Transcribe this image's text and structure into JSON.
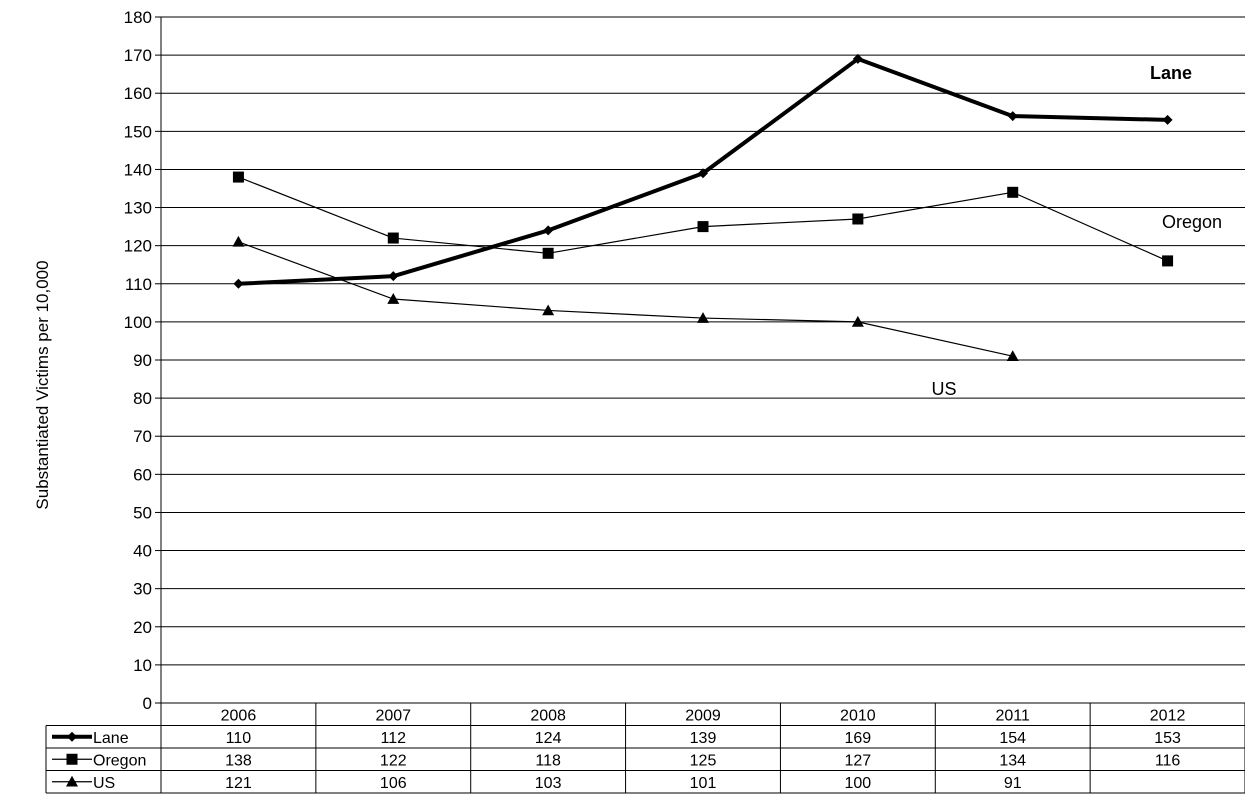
{
  "chart_data": {
    "type": "line",
    "ylabel": "Substantiated Victims per 10,000",
    "xlabel": "",
    "categories": [
      "2006",
      "2007",
      "2008",
      "2009",
      "2010",
      "2011",
      "2012"
    ],
    "ylim": [
      0,
      180
    ],
    "yticks": [
      0,
      10,
      20,
      30,
      40,
      50,
      60,
      70,
      80,
      90,
      100,
      110,
      120,
      130,
      140,
      150,
      160,
      170,
      180
    ],
    "grid": true,
    "legend_placement": "data table below plot",
    "series": [
      {
        "name": "Lane",
        "marker": "diamond",
        "line": "thick",
        "values": [
          110,
          112,
          124,
          139,
          169,
          154,
          153
        ]
      },
      {
        "name": "Oregon",
        "marker": "square",
        "line": "thin",
        "values": [
          138,
          122,
          118,
          125,
          127,
          134,
          116
        ]
      },
      {
        "name": "US",
        "marker": "triangle",
        "line": "thin",
        "values": [
          121,
          106,
          103,
          101,
          100,
          91,
          null
        ]
      }
    ],
    "annotations": [
      {
        "text": "Lane",
        "series": "Lane",
        "bold": true
      },
      {
        "text": "Oregon",
        "series": "Oregon",
        "bold": false
      },
      {
        "text": "US",
        "series": "US",
        "bold": false
      }
    ]
  }
}
